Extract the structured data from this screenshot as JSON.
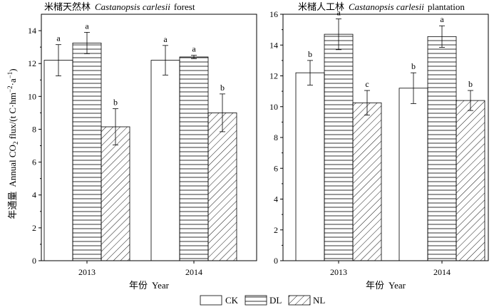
{
  "chart_data": [
    {
      "type": "bar",
      "title_cn": "米槠天然林",
      "title_latin": "Castanopsis carlesii",
      "title_suffix": "forest",
      "categories": [
        "2013",
        "2014"
      ],
      "series": [
        {
          "name": "CK",
          "values": [
            12.2,
            12.2
          ],
          "errors": [
            0.95,
            0.9
          ],
          "letters": [
            "a",
            "a"
          ]
        },
        {
          "name": "DL",
          "values": [
            13.25,
            12.4
          ],
          "errors": [
            0.65,
            0.1
          ],
          "letters": [
            "a",
            "a"
          ]
        },
        {
          "name": "NL",
          "values": [
            8.15,
            9.0
          ],
          "errors": [
            1.1,
            1.15
          ],
          "letters": [
            "b",
            "b"
          ]
        }
      ],
      "ylim": [
        0,
        15
      ],
      "yticks": [
        "0",
        "2",
        "4",
        "6",
        "8",
        "10",
        "12",
        "14"
      ],
      "xlabel_cn": "年份",
      "xlabel_en": "Year"
    },
    {
      "type": "bar",
      "title_cn": "米槠人工林",
      "title_latin": "Castanopsis carlesii",
      "title_suffix": "plantation",
      "categories": [
        "2013",
        "2014"
      ],
      "series": [
        {
          "name": "CK",
          "values": [
            12.2,
            11.2
          ],
          "errors": [
            0.8,
            1.0
          ],
          "letters": [
            "b",
            "b"
          ]
        },
        {
          "name": "DL",
          "values": [
            14.7,
            14.55
          ],
          "errors": [
            1.0,
            0.7
          ],
          "letters": [
            "a",
            "a"
          ]
        },
        {
          "name": "NL",
          "values": [
            10.25,
            10.4
          ],
          "errors": [
            0.8,
            0.65
          ],
          "letters": [
            "c",
            "b"
          ]
        }
      ],
      "ylim": [
        0,
        16
      ],
      "yticks": [
        "0",
        "2",
        "4",
        "6",
        "8",
        "10",
        "12",
        "14",
        "16"
      ],
      "xlabel_cn": "年份",
      "xlabel_en": "Year"
    }
  ],
  "ylabel_cn": "年通量",
  "ylabel_en": "Annual CO",
  "ylabel_sub": "2",
  "ylabel_rest": " flux/(t C·hm",
  "ylabel_exp1": "−2",
  "ylabel_mid": "·a",
  "ylabel_exp2": "−1",
  "ylabel_close": ")",
  "legend": [
    "CK",
    "DL",
    "NL"
  ]
}
